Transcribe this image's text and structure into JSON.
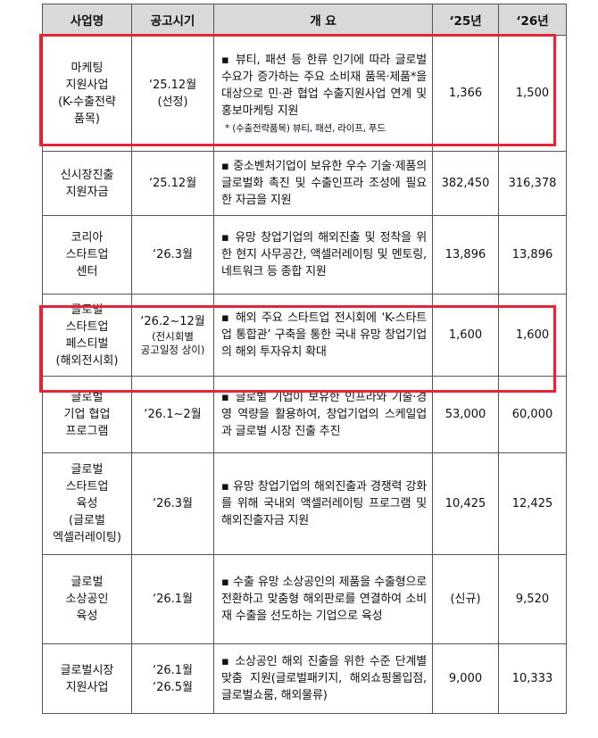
{
  "header": {
    "name": "사업명",
    "period": "공고시기",
    "summary": "개 요",
    "y25": "‘25년",
    "y26": "‘26년"
  },
  "rows": [
    {
      "name": [
        "마케팅",
        "지원사업",
        "(K-수출전략",
        "품목)"
      ],
      "period": [
        "‘25.12월",
        "(선정)"
      ],
      "desc": "▪ 뷰티, 패션 등 한류 인기에 따라 글로벌 수요가 증가하는 주요 소비재 품목·제품*을 대상으로 민·관 협업 수출지원사업 연계 및 홍보마케팅 지원",
      "note": "* (수출전략품목) 뷰티, 패션, 라이프, 푸드",
      "y25": "1,366",
      "y26": "1,500"
    },
    {
      "name": [
        "신시장진출",
        "지원자금"
      ],
      "period": [
        "‘25.12월"
      ],
      "desc": "▪ 중소벤처기업이 보유한 우수 기술·제품의 글로벌화 촉진 및 수출인프라 조성에 필요한 자금을 지원",
      "y25": "382,450",
      "y26": "316,378"
    },
    {
      "name": [
        "코리아",
        "스타트업",
        "센터"
      ],
      "period": [
        "‘26.3월"
      ],
      "desc": "▪ 유망 창업기업의 해외진출 및 정착을 위한 현지 사무공간, 액셀러레이팅 및 멘토링, 네트워크 등 종합 지원",
      "y25": "13,896",
      "y26": "13,896"
    },
    {
      "name": [
        "글로벌",
        "스타트업",
        "페스티벌",
        "(해외전시회)"
      ],
      "period": [
        "‘26.2~12월"
      ],
      "period_small": [
        "(전시회별",
        "공고일정 상이)"
      ],
      "desc": "▪ 해외 주요 스타트업 전시회에 ‘K-스타트업 통합관’ 구축을 통한 국내 유망 창업기업의 해외 투자유치 확대",
      "y25": "1,600",
      "y26": "1,600"
    },
    {
      "name": [
        "글로벌",
        "기업 협업",
        "프로그램"
      ],
      "period": [
        "‘26.1~2월"
      ],
      "desc": "▪ 글로벌 기업이 보유한 인프라와 기술·경영 역량을 활용하여, 창업기업의 스케일업과 글로벌 시장 진출 추진",
      "y25": "53,000",
      "y26": "60,000"
    },
    {
      "name": [
        "글로벌",
        "스타트업",
        "육성",
        "(글로벌",
        "엑셀러레이팅)"
      ],
      "period": [
        "‘26.3월"
      ],
      "desc": "▪ 유망 창업기업의 해외진출과 경쟁력 강화를 위해 국내외 액셀러레이팅 프로그램 및 해외진출자금 지원",
      "y25": "10,425",
      "y26": "12,425"
    },
    {
      "name": [
        "글로벌",
        "소상공인",
        "육성"
      ],
      "period": [
        "‘26.1월"
      ],
      "desc": "▪ 수출 유망 소상공인의 제품을 수출형으로 전환하고 맞춤형 해외판로를 연결하여 소비재 수출을 선도하는 기업으로 육성",
      "y25": "(신규)",
      "y26": "9,520"
    },
    {
      "name": [
        "글로벌시장",
        "지원사업"
      ],
      "period": [
        "‘26.1월",
        "‘26.5월"
      ],
      "desc": "▪ 소상공인 해외 진출을 위한 수준 단계별 맞춤 지원(글로벌패키지, 해외쇼핑몰입점, 글로벌쇼룸, 해외물류)",
      "y25": "9,000",
      "y26": "10,333"
    }
  ]
}
